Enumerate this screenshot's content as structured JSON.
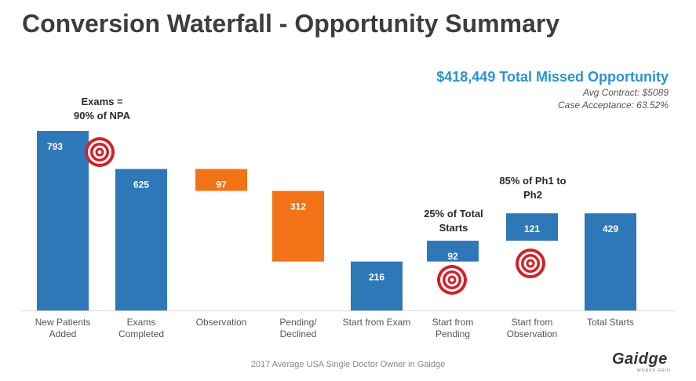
{
  "header": {
    "title": "Conversion Waterfall - Opportunity Summary",
    "total_missed": "$418,449 Total Missed Opportunity",
    "avg_contract": "Avg Contract: $5089",
    "case_acceptance": "Case Acceptance: 63.52%"
  },
  "annotations": {
    "exams_line1": "Exams =",
    "exams_line2": "90% of NPA",
    "starts_line1": "25% of Total",
    "starts_line2": "Starts",
    "ph_line1": "85% of Ph1 to",
    "ph_line2": "Ph2"
  },
  "categories_display": [
    [
      "New Patients",
      "Added"
    ],
    [
      "Exams",
      "Completed"
    ],
    [
      "Observation",
      ""
    ],
    [
      "Pending/",
      "Declined"
    ],
    [
      "Start from Exam",
      ""
    ],
    [
      "Start from",
      "Pending"
    ],
    [
      "Start from",
      "Observation"
    ],
    [
      "Total Starts",
      ""
    ]
  ],
  "footer": {
    "note": "2017 Average USA Single Doctor Owner in Gaidge",
    "logo": "Gaidge",
    "logo_sub": "WORKS GRID"
  },
  "colors": {
    "blue": "#2e78b7",
    "orange": "#f27318",
    "accent": "#2b93cf",
    "target_red": "#d42027"
  },
  "chart_data": {
    "type": "bar",
    "subtype": "waterfall",
    "title": "Conversion Waterfall - Opportunity Summary",
    "categories": [
      "New Patients Added",
      "Exams Completed",
      "Observation",
      "Pending/ Declined",
      "Start from Exam",
      "Start from Pending",
      "Start from Observation",
      "Total Starts"
    ],
    "values": [
      793,
      625,
      97,
      312,
      216,
      92,
      121,
      429
    ],
    "bases": [
      0,
      0,
      528,
      216,
      0,
      216,
      308,
      0
    ],
    "series_colors": [
      "blue",
      "blue",
      "orange",
      "orange",
      "blue",
      "blue",
      "blue",
      "blue"
    ],
    "ylim": [
      0,
      800
    ],
    "xlabel": "",
    "ylabel": "",
    "grid": false,
    "targets_on": [
      0,
      5,
      6
    ]
  }
}
